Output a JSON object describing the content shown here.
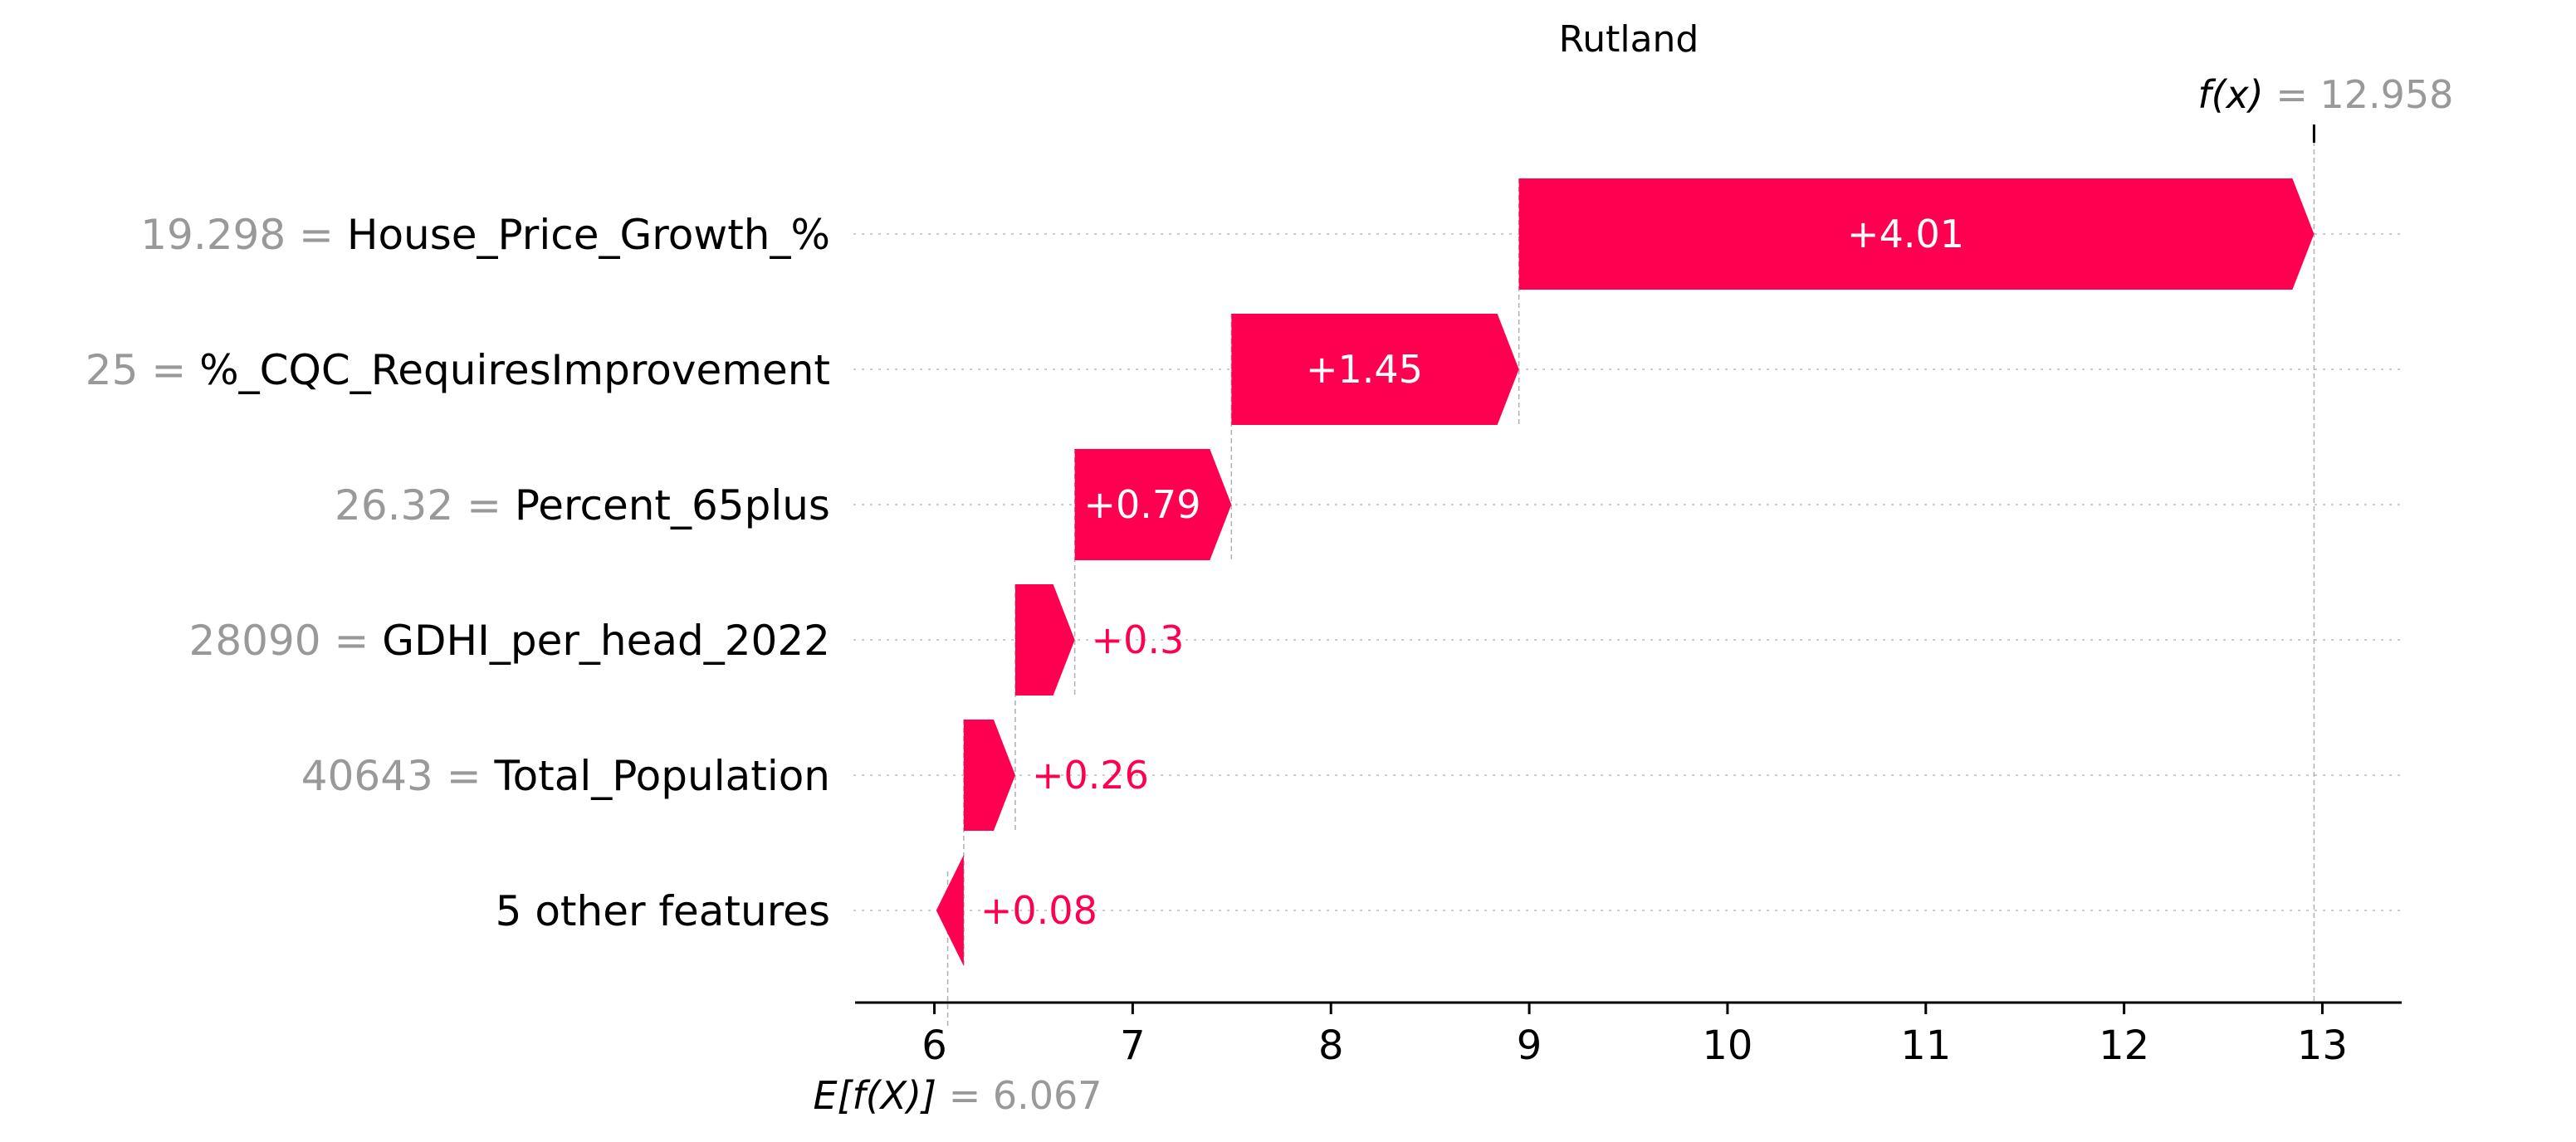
{
  "chart_data": {
    "type": "waterfall",
    "title": "Rutland",
    "features": [
      {
        "value_text": "19.298",
        "name": "House_Price_Growth_%",
        "contribution": 4.01,
        "label": "+4.01"
      },
      {
        "value_text": "25",
        "name": "%_CQC_RequiresImprovement",
        "contribution": 1.45,
        "label": "+1.45"
      },
      {
        "value_text": "26.32",
        "name": "Percent_65plus",
        "contribution": 0.79,
        "label": "+0.79"
      },
      {
        "value_text": "28090",
        "name": "GDHI_per_head_2022",
        "contribution": 0.3,
        "label": "+0.3"
      },
      {
        "value_text": "40643",
        "name": "Total_Population",
        "contribution": 0.26,
        "label": "+0.26"
      },
      {
        "value_text": "",
        "name": "5 other features",
        "contribution": 0.08,
        "label": "+0.08"
      }
    ],
    "base_value": 6.067,
    "base_value_text": "= 6.067",
    "base_label": "E[f(X)]",
    "output_value": 12.958,
    "output_value_text": "= 12.958",
    "output_label": "f(x)",
    "xticks": [
      6,
      7,
      8,
      9,
      10,
      11,
      12,
      13
    ],
    "xlim": [
      5.6,
      13.4
    ],
    "positive_color": "#ff0051",
    "grid": true
  }
}
